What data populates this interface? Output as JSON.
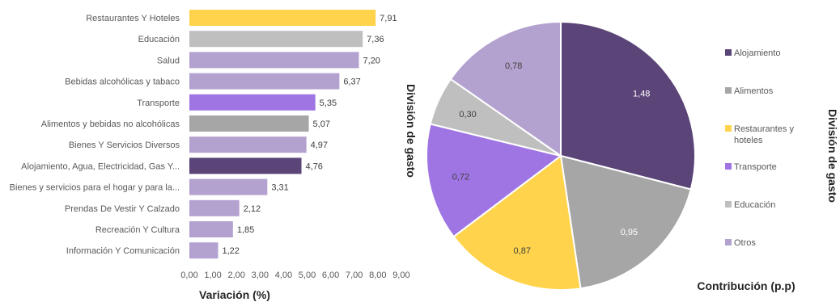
{
  "chart_data": [
    {
      "type": "bar",
      "orientation": "horizontal",
      "categories": [
        "Restaurantes Y Hoteles",
        "Educación",
        "Salud",
        "Bebidas alcohólicas y tabaco",
        "Transporte",
        "Alimentos y bebidas no alcohólicas",
        "Bienes Y Servicios Diversos",
        "Alojamiento, Agua, Electricidad, Gas Y...",
        "Bienes y servicios para el hogar y para la...",
        "Prendas De Vestir Y Calzado",
        "Recreación Y Cultura",
        "Información Y Comunicación"
      ],
      "values": [
        7.91,
        7.36,
        7.2,
        6.37,
        5.35,
        5.07,
        4.97,
        4.76,
        3.31,
        2.12,
        1.85,
        1.22
      ],
      "value_labels": [
        "7,91",
        "7,36",
        "7,20",
        "6,37",
        "5,35",
        "5,07",
        "4,97",
        "4,76",
        "3,31",
        "2,12",
        "1,85",
        "1,22"
      ],
      "colors": [
        "#FFD44C",
        "#BFBFBF",
        "#B3A2CF",
        "#B3A2CF",
        "#9F75E3",
        "#A6A6A6",
        "#B3A2CF",
        "#5B4578",
        "#B3A2CF",
        "#B3A2CF",
        "#B3A2CF",
        "#B3A2CF"
      ],
      "xlim": [
        0,
        9
      ],
      "x_ticks": [
        "0,00",
        "1,00",
        "2,00",
        "3,00",
        "4,00",
        "5,00",
        "6,00",
        "7,00",
        "8,00",
        "9,00"
      ],
      "xlabel": "Variación (%)",
      "ylabel": "División de gasto",
      "grid": false
    },
    {
      "type": "pie",
      "slices": [
        {
          "label": "Alojamiento",
          "value": 1.48,
          "value_label": "1,48",
          "color": "#5B4578",
          "label_color": "#FFFFFF"
        },
        {
          "label": "Alimentos",
          "value": 0.95,
          "value_label": "0,95",
          "color": "#A6A6A6",
          "label_color": "#FFFFFF"
        },
        {
          "label": "Restaurantes y hoteles",
          "value": 0.87,
          "value_label": "0,87",
          "color": "#FFD44C",
          "label_color": "#404040"
        },
        {
          "label": "Transporte",
          "value": 0.72,
          "value_label": "0,72",
          "color": "#9F75E3",
          "label_color": "#404040"
        },
        {
          "label": "Educación",
          "value": 0.3,
          "value_label": "0,30",
          "color": "#BFBFBF",
          "label_color": "#404040"
        },
        {
          "label": "Otros",
          "value": 0.78,
          "value_label": "0,78",
          "color": "#B3A2CF",
          "label_color": "#404040"
        }
      ],
      "legend_position": "right",
      "legend_title": "División de gasto",
      "xlabel": "Contribución (p.p)"
    }
  ]
}
